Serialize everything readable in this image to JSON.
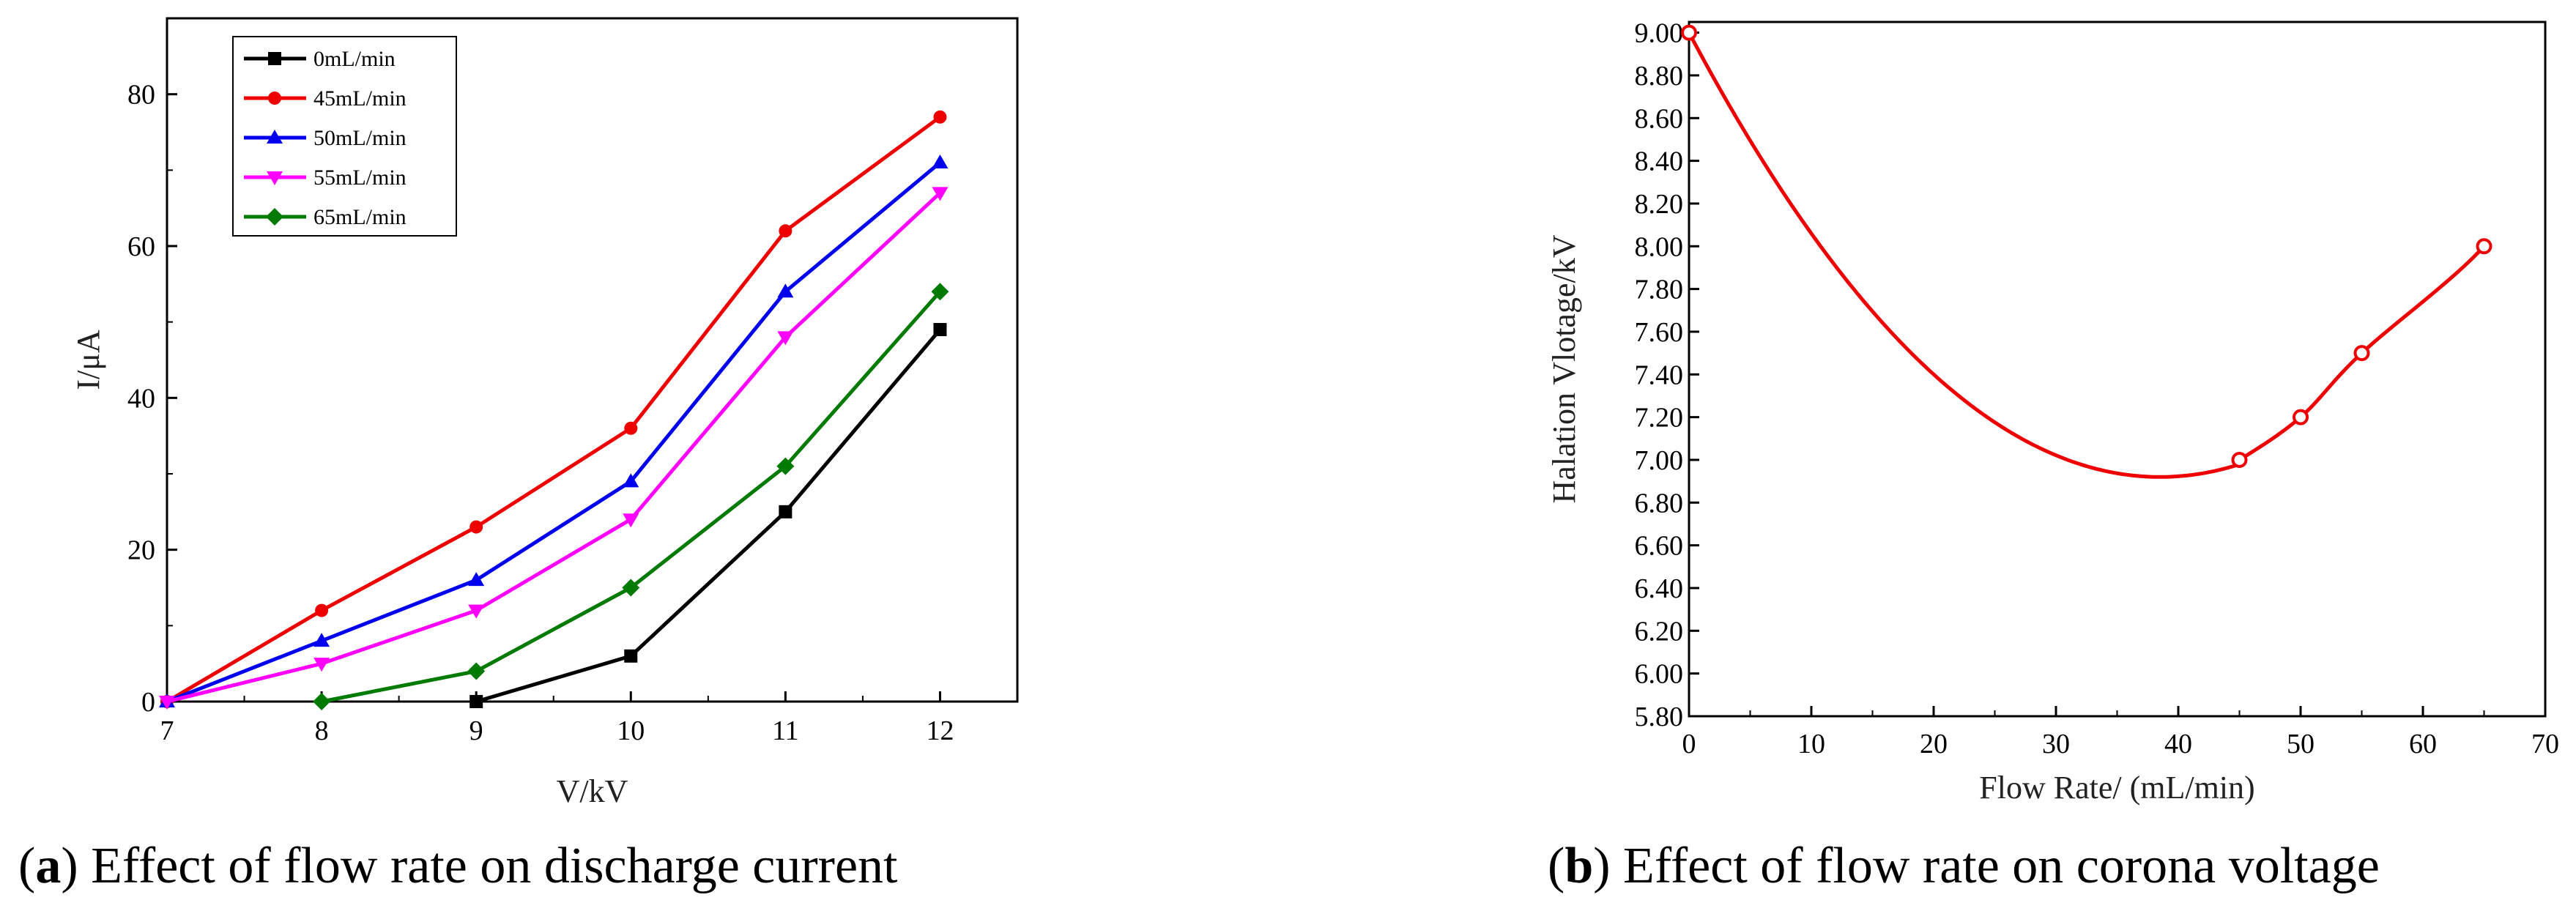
{
  "chart_data": [
    {
      "type": "line",
      "title": "",
      "xlabel": "V/kV",
      "ylabel": "I/μA",
      "xlim": [
        7,
        12.5
      ],
      "ylim": [
        0,
        90
      ],
      "xticks": [
        7,
        8,
        9,
        10,
        11,
        12
      ],
      "yticks": [
        0,
        20,
        40,
        60,
        80
      ],
      "legend_position": "top-left",
      "series": [
        {
          "name": "0mL/min",
          "color": "#000000",
          "marker": "square",
          "x": [
            9,
            10,
            11,
            12
          ],
          "y": [
            0,
            6,
            25,
            49
          ]
        },
        {
          "name": "45mL/min",
          "color": "#ee0000",
          "marker": "circle",
          "x": [
            7,
            8,
            9,
            10,
            11,
            12
          ],
          "y": [
            0,
            12,
            23,
            36,
            62,
            77
          ]
        },
        {
          "name": "50mL/min",
          "color": "#0000ee",
          "marker": "triangle-up",
          "x": [
            7,
            8,
            9,
            10,
            11,
            12
          ],
          "y": [
            0,
            8,
            16,
            29,
            54,
            71
          ]
        },
        {
          "name": "55mL/min",
          "color": "#ff00ff",
          "marker": "triangle-down",
          "x": [
            7,
            8,
            9,
            10,
            11,
            12
          ],
          "y": [
            0,
            5,
            12,
            24,
            48,
            67
          ]
        },
        {
          "name": "65mL/min",
          "color": "#007a00",
          "marker": "diamond",
          "x": [
            8,
            9,
            10,
            11,
            12
          ],
          "y": [
            0,
            4,
            15,
            31,
            54
          ]
        }
      ],
      "caption": {
        "label": "a",
        "text": ") Effect of flow rate on discharge current"
      }
    },
    {
      "type": "line",
      "title": "",
      "xlabel": "Flow Rate/ (mL/min)",
      "ylabel": "Halation Vlotage/kV",
      "xlim": [
        0,
        70
      ],
      "ylim": [
        5.8,
        9.05
      ],
      "xticks": [
        0,
        10,
        20,
        30,
        40,
        50,
        60,
        70
      ],
      "yticks": [
        5.8,
        6.0,
        6.2,
        6.4,
        6.6,
        6.8,
        7.0,
        7.2,
        7.4,
        7.6,
        7.8,
        8.0,
        8.2,
        8.4,
        8.6,
        8.8,
        9.0
      ],
      "ytick_labels": [
        "5.80",
        "6.00",
        "6.20",
        "6.40",
        "6.60",
        "6.80",
        "7.00",
        "7.20",
        "7.40",
        "7.60",
        "7.80",
        "8.00",
        "8.20",
        "8.40",
        "8.60",
        "8.80",
        "9.00"
      ],
      "series": [
        {
          "name": "corona voltage",
          "color": "#ee0000",
          "points": {
            "x": [
              0,
              45,
              50,
              55,
              65
            ],
            "y": [
              9.0,
              7.0,
              7.2,
              7.5,
              8.0
            ]
          },
          "curve_min": {
            "x": 38.5,
            "y": 6.92
          }
        }
      ],
      "caption": {
        "label": "b",
        "text": ") Effect of flow rate on corona voltage"
      }
    }
  ]
}
